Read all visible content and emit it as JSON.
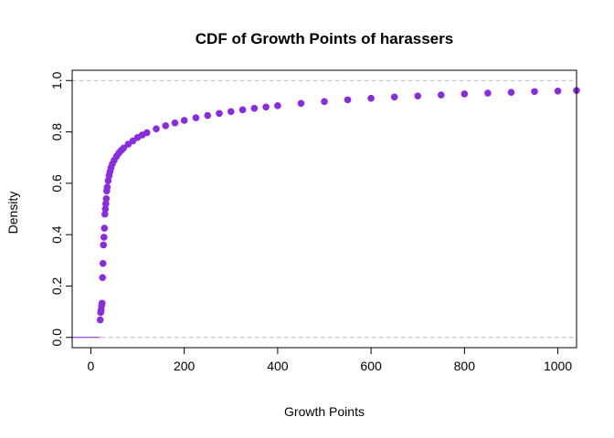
{
  "chart_data": {
    "type": "scatter",
    "title": "CDF of Growth Points of harassers",
    "xlabel": "Growth Points",
    "ylabel": "Density",
    "xlim": [
      -40,
      1040
    ],
    "ylim": [
      -0.04,
      1.04
    ],
    "x_ticks": [
      0,
      200,
      400,
      600,
      800,
      1000
    ],
    "y_ticks": [
      0.0,
      0.2,
      0.4,
      0.6,
      0.8,
      1.0
    ],
    "x_tick_labels": [
      "0",
      "200",
      "400",
      "600",
      "800",
      "1000"
    ],
    "y_tick_labels": [
      "0.0",
      "0.2",
      "0.4",
      "0.6",
      "0.8",
      "1.0"
    ],
    "reference_lines_y": [
      0,
      1
    ],
    "point_color": "#8a2be2",
    "baseline_segment": {
      "x": [
        -40,
        20
      ],
      "y": 0
    },
    "points": [
      [
        20,
        0.068
      ],
      [
        21,
        0.097
      ],
      [
        22,
        0.107
      ],
      [
        23,
        0.123
      ],
      [
        24,
        0.133
      ],
      [
        25,
        0.233
      ],
      [
        26,
        0.288
      ],
      [
        27,
        0.36
      ],
      [
        28,
        0.39
      ],
      [
        29,
        0.425
      ],
      [
        30,
        0.48
      ],
      [
        31,
        0.5
      ],
      [
        32,
        0.52
      ],
      [
        33,
        0.54
      ],
      [
        34,
        0.57
      ],
      [
        35,
        0.585
      ],
      [
        37,
        0.61
      ],
      [
        39,
        0.63
      ],
      [
        41,
        0.645
      ],
      [
        43,
        0.66
      ],
      [
        46,
        0.675
      ],
      [
        50,
        0.69
      ],
      [
        55,
        0.705
      ],
      [
        60,
        0.718
      ],
      [
        65,
        0.728
      ],
      [
        70,
        0.737
      ],
      [
        80,
        0.752
      ],
      [
        90,
        0.765
      ],
      [
        100,
        0.778
      ],
      [
        110,
        0.788
      ],
      [
        120,
        0.797
      ],
      [
        140,
        0.812
      ],
      [
        160,
        0.824
      ],
      [
        180,
        0.835
      ],
      [
        200,
        0.845
      ],
      [
        225,
        0.855
      ],
      [
        250,
        0.864
      ],
      [
        275,
        0.872
      ],
      [
        300,
        0.879
      ],
      [
        325,
        0.886
      ],
      [
        350,
        0.892
      ],
      [
        375,
        0.897
      ],
      [
        400,
        0.902
      ],
      [
        450,
        0.911
      ],
      [
        500,
        0.918
      ],
      [
        550,
        0.925
      ],
      [
        600,
        0.931
      ],
      [
        650,
        0.936
      ],
      [
        700,
        0.94
      ],
      [
        750,
        0.944
      ],
      [
        800,
        0.948
      ],
      [
        850,
        0.951
      ],
      [
        900,
        0.954
      ],
      [
        950,
        0.957
      ],
      [
        1000,
        0.959
      ],
      [
        1040,
        0.961
      ]
    ]
  }
}
